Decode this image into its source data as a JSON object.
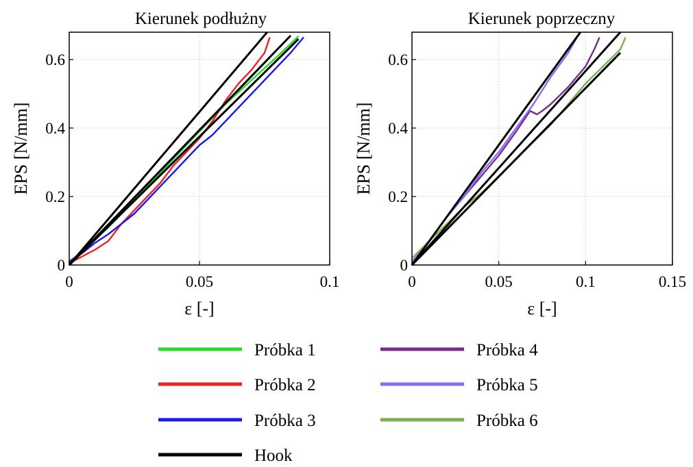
{
  "chart_data": [
    {
      "type": "line",
      "title": "Kierunek podłużny",
      "xlabel": "ε [-]",
      "ylabel": "EPS [N/mm]",
      "xlim": [
        0,
        0.1
      ],
      "ylim": [
        0,
        0.68
      ],
      "xticks": [
        0,
        0.05,
        0.1
      ],
      "xtick_labels": [
        "0",
        "0.05",
        "0.1"
      ],
      "yticks": [
        0,
        0.2,
        0.4,
        0.6
      ],
      "ytick_labels": [
        "0",
        "0.2",
        "0.4",
        "0.6"
      ],
      "grid": true,
      "series": [
        {
          "name": "Próbka 1",
          "color": "#22dd22",
          "x": [
            0,
            0.005,
            0.01,
            0.015,
            0.02,
            0.03,
            0.04,
            0.05,
            0.06,
            0.07,
            0.08,
            0.088
          ],
          "y": [
            0.01,
            0.04,
            0.075,
            0.11,
            0.15,
            0.23,
            0.31,
            0.39,
            0.47,
            0.54,
            0.61,
            0.668
          ]
        },
        {
          "name": "Próbka 2",
          "color": "#ee2222",
          "x": [
            0,
            0.005,
            0.01,
            0.015,
            0.02,
            0.025,
            0.03,
            0.035,
            0.04,
            0.045,
            0.05,
            0.055,
            0.06,
            0.065,
            0.07,
            0.075,
            0.077
          ],
          "y": [
            0.005,
            0.025,
            0.045,
            0.07,
            0.12,
            0.16,
            0.2,
            0.24,
            0.29,
            0.33,
            0.37,
            0.42,
            0.48,
            0.53,
            0.57,
            0.62,
            0.665
          ]
        },
        {
          "name": "Próbka 3",
          "color": "#1a1aee",
          "x": [
            0,
            0.005,
            0.01,
            0.015,
            0.02,
            0.025,
            0.03,
            0.035,
            0.04,
            0.045,
            0.05,
            0.055,
            0.06,
            0.065,
            0.07,
            0.075,
            0.08,
            0.085,
            0.09
          ],
          "y": [
            0.01,
            0.035,
            0.065,
            0.09,
            0.12,
            0.15,
            0.19,
            0.23,
            0.27,
            0.31,
            0.35,
            0.38,
            0.42,
            0.46,
            0.5,
            0.54,
            0.58,
            0.62,
            0.665
          ]
        },
        {
          "name": "Hook",
          "color": "#000000",
          "x": [
            0,
            0.076
          ],
          "y": [
            0,
            0.68
          ]
        },
        {
          "name": "Hook",
          "color": "#000000",
          "x": [
            0,
            0.085
          ],
          "y": [
            0,
            0.67
          ]
        },
        {
          "name": "Hook",
          "color": "#000000",
          "x": [
            0,
            0.088
          ],
          "y": [
            0,
            0.66
          ]
        }
      ]
    },
    {
      "type": "line",
      "title": "Kierunek poprzeczny",
      "xlabel": "ε [-]",
      "ylabel": "EPS [N/mm]",
      "xlim": [
        0,
        0.15
      ],
      "ylim": [
        0,
        0.68
      ],
      "xticks": [
        0,
        0.05,
        0.1,
        0.15
      ],
      "xtick_labels": [
        "0",
        "0.05",
        "0.1",
        "0.15"
      ],
      "yticks": [
        0,
        0.2,
        0.4,
        0.6
      ],
      "ytick_labels": [
        "0",
        "0.2",
        "0.4",
        "0.6"
      ],
      "grid": true,
      "series": [
        {
          "name": "Próbka 4",
          "color": "#7a2a8a",
          "x": [
            0,
            0.01,
            0.02,
            0.03,
            0.04,
            0.05,
            0.06,
            0.068,
            0.072,
            0.075,
            0.08,
            0.09,
            0.1,
            0.105,
            0.108
          ],
          "y": [
            0.01,
            0.07,
            0.14,
            0.2,
            0.26,
            0.32,
            0.39,
            0.45,
            0.44,
            0.45,
            0.47,
            0.52,
            0.58,
            0.63,
            0.665
          ]
        },
        {
          "name": "Próbka 5",
          "color": "#8a6af2",
          "x": [
            0,
            0.01,
            0.02,
            0.03,
            0.04,
            0.05,
            0.06,
            0.07,
            0.08,
            0.09,
            0.095
          ],
          "y": [
            0.01,
            0.07,
            0.14,
            0.2,
            0.27,
            0.33,
            0.4,
            0.47,
            0.55,
            0.62,
            0.665
          ]
        },
        {
          "name": "Próbka 6",
          "color": "#7fb050",
          "x": [
            0,
            0.01,
            0.02,
            0.03,
            0.04,
            0.05,
            0.06,
            0.07,
            0.08,
            0.09,
            0.1,
            0.11,
            0.12,
            0.123
          ],
          "y": [
            0.02,
            0.07,
            0.12,
            0.17,
            0.21,
            0.26,
            0.31,
            0.36,
            0.41,
            0.47,
            0.53,
            0.58,
            0.63,
            0.665
          ]
        },
        {
          "name": "Hook",
          "color": "#000000",
          "x": [
            0,
            0.097
          ],
          "y": [
            0,
            0.68
          ]
        },
        {
          "name": "Hook",
          "color": "#000000",
          "x": [
            0,
            0.12
          ],
          "y": [
            0,
            0.68
          ]
        },
        {
          "name": "Hook",
          "color": "#000000",
          "x": [
            0,
            0.12
          ],
          "y": [
            0,
            0.62
          ]
        }
      ]
    }
  ],
  "legend": [
    {
      "label": "Próbka 1",
      "color": "#22dd22"
    },
    {
      "label": "Próbka 2",
      "color": "#ee2222"
    },
    {
      "label": "Próbka 3",
      "color": "#1a1aee"
    },
    {
      "label": "Hook",
      "color": "#000000"
    },
    {
      "label": "Próbka 4",
      "color": "#7a2a8a"
    },
    {
      "label": "Próbka 5",
      "color": "#8a6af2"
    },
    {
      "label": "Próbka 6",
      "color": "#7fb050"
    }
  ]
}
